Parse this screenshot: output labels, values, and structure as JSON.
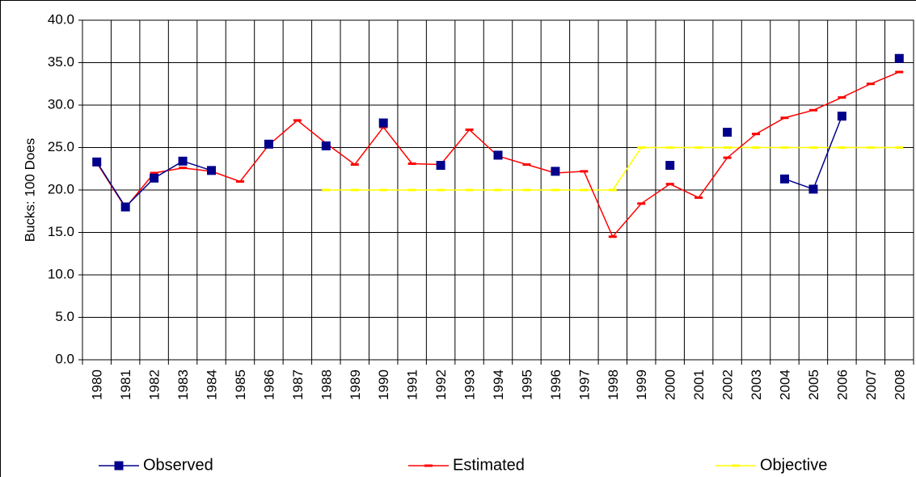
{
  "chart_data": {
    "type": "line",
    "y_label": "Bucks: 100 Does",
    "categories": [
      "1980",
      "1981",
      "1982",
      "1983",
      "1984",
      "1985",
      "1986",
      "1987",
      "1988",
      "1989",
      "1990",
      "1991",
      "1992",
      "1993",
      "1994",
      "1995",
      "1996",
      "1997",
      "1998",
      "1999",
      "2000",
      "2001",
      "2002",
      "2003",
      "2004",
      "2005",
      "2006",
      "2007",
      "2008"
    ],
    "series": [
      {
        "name": "Observed",
        "color": "#00008b",
        "marker": "square",
        "values": [
          23.3,
          18.0,
          21.4,
          23.4,
          22.3,
          null,
          25.4,
          null,
          25.2,
          null,
          27.9,
          null,
          22.9,
          null,
          24.1,
          null,
          22.2,
          null,
          null,
          null,
          22.9,
          null,
          26.8,
          null,
          21.3,
          20.1,
          28.7,
          null,
          35.5
        ]
      },
      {
        "name": "Estimated",
        "color": "#ff0000",
        "marker": "dash",
        "values": [
          23.2,
          17.9,
          22.0,
          22.6,
          22.2,
          21.0,
          25.3,
          28.2,
          25.5,
          23.0,
          27.4,
          23.1,
          23.0,
          27.1,
          24.0,
          23.0,
          22.0,
          22.2,
          14.5,
          18.4,
          20.7,
          19.1,
          23.8,
          26.6,
          28.5,
          29.4,
          30.9,
          32.5,
          33.9
        ]
      },
      {
        "name": "Objective",
        "color": "#ffff00",
        "marker": "dash",
        "values": [
          null,
          null,
          null,
          null,
          null,
          null,
          null,
          null,
          20,
          20,
          20,
          20,
          20,
          20,
          20,
          20,
          20,
          20,
          20,
          25,
          25,
          25,
          25,
          25,
          25,
          25,
          25,
          25,
          25
        ]
      }
    ],
    "ylim": [
      0,
      40
    ],
    "yticks": [
      {
        "value": 0,
        "label": "0.0"
      },
      {
        "value": 5,
        "label": "5.0"
      },
      {
        "value": 10,
        "label": "10.0"
      },
      {
        "value": 15,
        "label": "15.0"
      },
      {
        "value": 20,
        "label": "20.0"
      },
      {
        "value": 25,
        "label": "25.0"
      },
      {
        "value": 30,
        "label": "30.0"
      },
      {
        "value": 35,
        "label": "35.0"
      },
      {
        "value": 40,
        "label": "40.0"
      }
    ],
    "grid": true,
    "legend": "bottom"
  }
}
